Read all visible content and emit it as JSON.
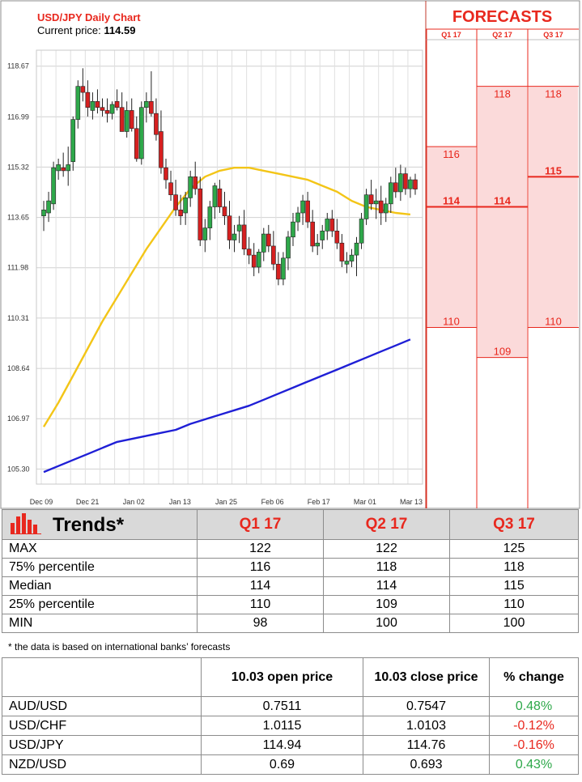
{
  "colors": {
    "accent_red": "#e8281e",
    "candle_up": "#2ea84a",
    "candle_down": "#d62020",
    "ma_short": "#f3c517",
    "ma_long": "#1f1fd6",
    "forecast_fill": "#fbdada",
    "positive": "#2ea84a",
    "negative": "#e8281e"
  },
  "chart_data": [
    {
      "type": "candlestick",
      "title": "USD/JPY Daily Chart",
      "current_price_label": "Current price:",
      "current_price": "114.59",
      "yticks": [
        "118.67",
        "116.99",
        "115.32",
        "113.65",
        "111.98",
        "110.31",
        "108.64",
        "106.97",
        "105.30"
      ],
      "ylim": [
        104.8,
        119.2
      ],
      "xticks": [
        "Dec 09",
        "Dec 21",
        "Jan 02",
        "Jan 13",
        "Jan 25",
        "Feb 06",
        "Feb 17",
        "Mar 01",
        "Mar 13"
      ],
      "candles": [
        [
          113.7,
          114.2,
          113.2,
          113.9
        ],
        [
          113.8,
          114.5,
          113.5,
          114.2
        ],
        [
          114.1,
          115.5,
          113.9,
          115.3
        ],
        [
          115.2,
          115.6,
          114.9,
          115.4
        ],
        [
          115.3,
          115.8,
          115.0,
          115.2
        ],
        [
          115.2,
          116.0,
          114.7,
          115.4
        ],
        [
          115.5,
          117.0,
          115.2,
          116.9
        ],
        [
          116.9,
          118.2,
          116.6,
          118.0
        ],
        [
          118.0,
          118.6,
          117.5,
          117.8
        ],
        [
          117.8,
          118.2,
          117.0,
          117.3
        ],
        [
          117.2,
          117.8,
          116.9,
          117.5
        ],
        [
          117.5,
          117.9,
          117.1,
          117.3
        ],
        [
          117.3,
          117.6,
          117.0,
          117.2
        ],
        [
          117.2,
          117.6,
          116.8,
          117.1
        ],
        [
          117.1,
          117.5,
          116.9,
          117.4
        ],
        [
          117.5,
          117.9,
          117.2,
          117.3
        ],
        [
          117.3,
          117.8,
          116.6,
          116.5
        ],
        [
          116.5,
          117.5,
          116.3,
          117.2
        ],
        [
          117.2,
          117.6,
          116.5,
          116.6
        ],
        [
          116.6,
          117.0,
          115.5,
          115.6
        ],
        [
          115.6,
          117.5,
          115.4,
          117.3
        ],
        [
          117.3,
          117.8,
          116.8,
          117.5
        ],
        [
          117.5,
          118.5,
          117.0,
          117.1
        ],
        [
          117.1,
          117.6,
          116.2,
          116.4
        ],
        [
          116.5,
          117.2,
          115.1,
          115.3
        ],
        [
          115.3,
          115.6,
          114.6,
          114.9
        ],
        [
          114.8,
          115.2,
          114.2,
          114.4
        ],
        [
          114.4,
          114.9,
          113.7,
          113.9
        ],
        [
          113.9,
          114.4,
          113.4,
          113.7
        ],
        [
          113.8,
          114.5,
          113.4,
          114.3
        ],
        [
          114.3,
          115.2,
          114.0,
          115.0
        ],
        [
          115.0,
          115.5,
          114.4,
          114.6
        ],
        [
          114.6,
          115.0,
          112.7,
          112.9
        ],
        [
          112.9,
          113.6,
          112.5,
          113.3
        ],
        [
          113.3,
          114.2,
          112.9,
          114.0
        ],
        [
          114.0,
          114.8,
          113.6,
          114.7
        ],
        [
          114.6,
          114.9,
          113.8,
          114.0
        ],
        [
          114.0,
          114.5,
          113.4,
          113.7
        ],
        [
          113.7,
          114.2,
          112.6,
          112.9
        ],
        [
          112.9,
          113.4,
          112.5,
          113.1
        ],
        [
          113.2,
          113.7,
          112.8,
          113.4
        ],
        [
          113.4,
          113.9,
          112.4,
          112.6
        ],
        [
          112.6,
          113.0,
          112.1,
          112.4
        ],
        [
          112.4,
          112.8,
          111.7,
          112.0
        ],
        [
          112.0,
          112.6,
          111.8,
          112.5
        ],
        [
          112.5,
          113.3,
          112.2,
          113.1
        ],
        [
          113.1,
          113.4,
          112.5,
          112.7
        ],
        [
          112.7,
          113.2,
          111.9,
          112.1
        ],
        [
          112.1,
          112.5,
          111.4,
          111.6
        ],
        [
          111.6,
          112.5,
          111.4,
          112.3
        ],
        [
          112.3,
          113.2,
          111.9,
          113.0
        ],
        [
          113.0,
          113.8,
          112.7,
          113.5
        ],
        [
          113.5,
          114.0,
          113.2,
          113.8
        ],
        [
          113.8,
          114.4,
          113.4,
          114.2
        ],
        [
          114.2,
          114.5,
          113.3,
          113.5
        ],
        [
          113.5,
          113.9,
          112.5,
          112.7
        ],
        [
          112.7,
          113.1,
          112.4,
          112.8
        ],
        [
          112.9,
          113.4,
          112.6,
          113.2
        ],
        [
          113.2,
          113.8,
          112.9,
          113.6
        ],
        [
          113.6,
          113.9,
          113.0,
          113.2
        ],
        [
          113.2,
          113.6,
          112.6,
          112.8
        ],
        [
          112.8,
          113.1,
          112.0,
          112.2
        ],
        [
          112.1,
          112.5,
          111.8,
          112.2
        ],
        [
          112.2,
          112.6,
          112.0,
          112.4
        ],
        [
          112.4,
          113.0,
          111.7,
          112.8
        ],
        [
          112.8,
          113.8,
          112.6,
          113.6
        ],
        [
          113.6,
          114.6,
          113.4,
          114.4
        ],
        [
          114.4,
          114.9,
          113.9,
          114.1
        ],
        [
          114.1,
          114.6,
          113.6,
          114.2
        ],
        [
          114.2,
          114.7,
          113.4,
          113.8
        ],
        [
          113.8,
          114.3,
          113.5,
          114.1
        ],
        [
          114.1,
          115.0,
          113.8,
          114.8
        ],
        [
          114.8,
          115.3,
          114.3,
          114.5
        ],
        [
          114.5,
          115.4,
          114.2,
          115.1
        ],
        [
          115.1,
          115.3,
          114.4,
          114.6
        ],
        [
          114.6,
          115.0,
          114.3,
          114.9
        ],
        [
          114.9,
          115.1,
          114.4,
          114.59
        ]
      ],
      "ma_short": [
        [
          0,
          106.7
        ],
        [
          3,
          107.5
        ],
        [
          6,
          108.4
        ],
        [
          9,
          109.3
        ],
        [
          12,
          110.2
        ],
        [
          15,
          111.0
        ],
        [
          18,
          111.8
        ],
        [
          21,
          112.6
        ],
        [
          24,
          113.3
        ],
        [
          27,
          114.0
        ],
        [
          30,
          114.6
        ],
        [
          33,
          115.0
        ],
        [
          36,
          115.2
        ],
        [
          39,
          115.3
        ],
        [
          42,
          115.3
        ],
        [
          45,
          115.2
        ],
        [
          48,
          115.1
        ],
        [
          51,
          115.0
        ],
        [
          54,
          114.9
        ],
        [
          57,
          114.7
        ],
        [
          60,
          114.5
        ],
        [
          63,
          114.2
        ],
        [
          66,
          114.0
        ],
        [
          69,
          113.9
        ],
        [
          72,
          113.8
        ],
        [
          75,
          113.75
        ]
      ],
      "ma_long": [
        [
          0,
          105.2
        ],
        [
          3,
          105.4
        ],
        [
          6,
          105.6
        ],
        [
          9,
          105.8
        ],
        [
          12,
          106.0
        ],
        [
          15,
          106.2
        ],
        [
          18,
          106.3
        ],
        [
          21,
          106.4
        ],
        [
          24,
          106.5
        ],
        [
          27,
          106.6
        ],
        [
          30,
          106.8
        ],
        [
          33,
          106.95
        ],
        [
          36,
          107.1
        ],
        [
          39,
          107.25
        ],
        [
          42,
          107.4
        ],
        [
          45,
          107.6
        ],
        [
          48,
          107.8
        ],
        [
          51,
          108.0
        ],
        [
          54,
          108.2
        ],
        [
          57,
          108.4
        ],
        [
          60,
          108.6
        ],
        [
          63,
          108.8
        ],
        [
          66,
          109.0
        ],
        [
          69,
          109.2
        ],
        [
          72,
          109.4
        ],
        [
          75,
          109.6
        ]
      ]
    },
    {
      "type": "range",
      "title": "FORECASTS",
      "columns": [
        {
          "label": "Q1 17",
          "high": "116",
          "median": "114",
          "low": "110",
          "high_value": 116,
          "median_value": 114,
          "low_value": 110
        },
        {
          "label": "Q2 17",
          "high": "118",
          "median": "114",
          "low": "109",
          "high_value": 118,
          "median_value": 114,
          "low_value": 109
        },
        {
          "label": "Q3 17",
          "high": "118",
          "median": "115",
          "low": "110",
          "high_value": 118,
          "median_value": 115,
          "low_value": 110
        }
      ]
    }
  ],
  "trends": {
    "title": "Trends*",
    "columns": [
      "Q1 17",
      "Q2 17",
      "Q3 17"
    ],
    "rows": [
      {
        "label": "MAX",
        "values": [
          "122",
          "122",
          "125"
        ]
      },
      {
        "label": "75% percentile",
        "values": [
          "116",
          "118",
          "118"
        ]
      },
      {
        "label": "Median",
        "values": [
          "114",
          "114",
          "115"
        ]
      },
      {
        "label": "25% percentile",
        "values": [
          "110",
          "109",
          "110"
        ]
      },
      {
        "label": "MIN",
        "values": [
          "98",
          "100",
          "100"
        ]
      }
    ],
    "footnote": "* the data is based on international banks’ forecasts"
  },
  "fx_table": {
    "headers": [
      "",
      "10.03 open price",
      "10.03 close price",
      "% change"
    ],
    "rows": [
      {
        "pair": "AUD/USD",
        "open": "0.7511",
        "close": "0.7547",
        "change": "0.48%",
        "direction": "up"
      },
      {
        "pair": "USD/CHF",
        "open": "1.0115",
        "close": "1.0103",
        "change": "-0.12%",
        "direction": "down"
      },
      {
        "pair": "USD/JPY",
        "open": "114.94",
        "close": "114.76",
        "change": "-0.16%",
        "direction": "down"
      },
      {
        "pair": "NZD/USD",
        "open": "0.69",
        "close": "0.693",
        "change": "0.43%",
        "direction": "up"
      }
    ]
  }
}
